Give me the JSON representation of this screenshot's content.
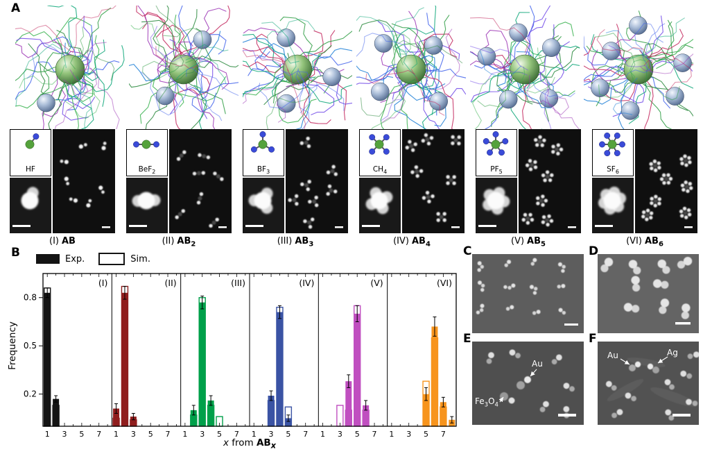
{
  "panel_a": {
    "label": "A",
    "groups": [
      {
        "numeral": "(I)",
        "name": "AB",
        "sub": "",
        "formula": "HF",
        "formula_sub": "",
        "satellites": 1
      },
      {
        "numeral": "(II)",
        "name": "AB",
        "sub": "2",
        "formula": "BeF",
        "formula_sub": "2",
        "satellites": 2
      },
      {
        "numeral": "(III)",
        "name": "AB",
        "sub": "3",
        "formula": "BF",
        "formula_sub": "3",
        "satellites": 3
      },
      {
        "numeral": "(IV)",
        "name": "AB",
        "sub": "4",
        "formula": "CH",
        "formula_sub": "4",
        "satellites": 4
      },
      {
        "numeral": "(V)",
        "name": "AB",
        "sub": "5",
        "formula": "PF",
        "formula_sub": "5",
        "satellites": 5
      },
      {
        "numeral": "(VI)",
        "name": "AB",
        "sub": "6",
        "formula": "SF",
        "formula_sub": "6",
        "satellites": 6
      }
    ]
  },
  "panel_b": {
    "label": "B",
    "legend_exp": "Exp.",
    "legend_sim": "Sim.",
    "ylabel": "Frequency",
    "xlabel_x": "x",
    "xlabel_from": " from ",
    "xlabel_ab": "AB",
    "xlabel_sub": "x"
  },
  "panel_c": {
    "label": "C"
  },
  "panel_d": {
    "label": "D"
  },
  "panel_e": {
    "label": "E",
    "ann_au": "Au",
    "ann_fe1": "Fe",
    "ann_fe1s": "3",
    "ann_fe2": "O",
    "ann_fe2s": "4"
  },
  "panel_f": {
    "label": "F",
    "ann_au": "Au",
    "ann_ag": "Ag"
  },
  "chart_data": {
    "type": "bar",
    "ylabel": "Frequency",
    "xlabel": "x from AB_x",
    "ylim": [
      0,
      0.95
    ],
    "yticks": [
      0.2,
      0.5,
      0.8
    ],
    "xticks": [
      1,
      3,
      5,
      7
    ],
    "x": [
      1,
      2,
      3,
      4,
      5,
      6,
      7,
      8
    ],
    "legend": [
      "Exp.",
      "Sim."
    ],
    "grid": false,
    "panels": [
      {
        "label": "(I)",
        "color": "#141414",
        "exp": [
          0.83,
          0.17,
          0,
          0,
          0,
          0,
          0,
          0
        ],
        "sim": [
          0.86,
          0.13,
          0,
          0,
          0,
          0,
          0,
          0
        ],
        "err": [
          0.03,
          0.02,
          0,
          0,
          0,
          0,
          0,
          0
        ]
      },
      {
        "label": "(II)",
        "color": "#8f1d1d",
        "exp": [
          0.11,
          0.83,
          0.06,
          0,
          0,
          0,
          0,
          0
        ],
        "sim": [
          0.05,
          0.87,
          0.04,
          0,
          0,
          0,
          0,
          0
        ],
        "err": [
          0.03,
          0.04,
          0.02,
          0,
          0,
          0,
          0,
          0
        ]
      },
      {
        "label": "(III)",
        "color": "#00a04a",
        "exp": [
          0,
          0.1,
          0.77,
          0.16,
          0,
          0,
          0,
          0
        ],
        "sim": [
          0,
          0.07,
          0.8,
          0.13,
          0.06,
          0,
          0,
          0
        ],
        "err": [
          0,
          0.03,
          0.04,
          0.03,
          0,
          0,
          0,
          0
        ]
      },
      {
        "label": "(IV)",
        "color": "#3a53a4",
        "exp": [
          0,
          0,
          0.19,
          0.71,
          0.05,
          0,
          0,
          0
        ],
        "sim": [
          0,
          0,
          0.16,
          0.74,
          0.12,
          0,
          0,
          0
        ],
        "err": [
          0,
          0,
          0.03,
          0.04,
          0.02,
          0,
          0,
          0
        ]
      },
      {
        "label": "(V)",
        "color": "#c04fc0",
        "exp": [
          0,
          0,
          0,
          0.28,
          0.7,
          0.13,
          0,
          0
        ],
        "sim": [
          0,
          0,
          0.13,
          0.1,
          0.75,
          0.1,
          0,
          0
        ],
        "err": [
          0,
          0,
          0,
          0.04,
          0.05,
          0.03,
          0,
          0
        ]
      },
      {
        "label": "(VI)",
        "color": "#f7941d",
        "exp": [
          0,
          0,
          0,
          0,
          0.2,
          0.62,
          0.15,
          0.04
        ],
        "sim": [
          0,
          0,
          0,
          0,
          0.28,
          0.55,
          0.12,
          0
        ],
        "err": [
          0,
          0,
          0,
          0,
          0.04,
          0.06,
          0.03,
          0.02
        ]
      }
    ]
  }
}
